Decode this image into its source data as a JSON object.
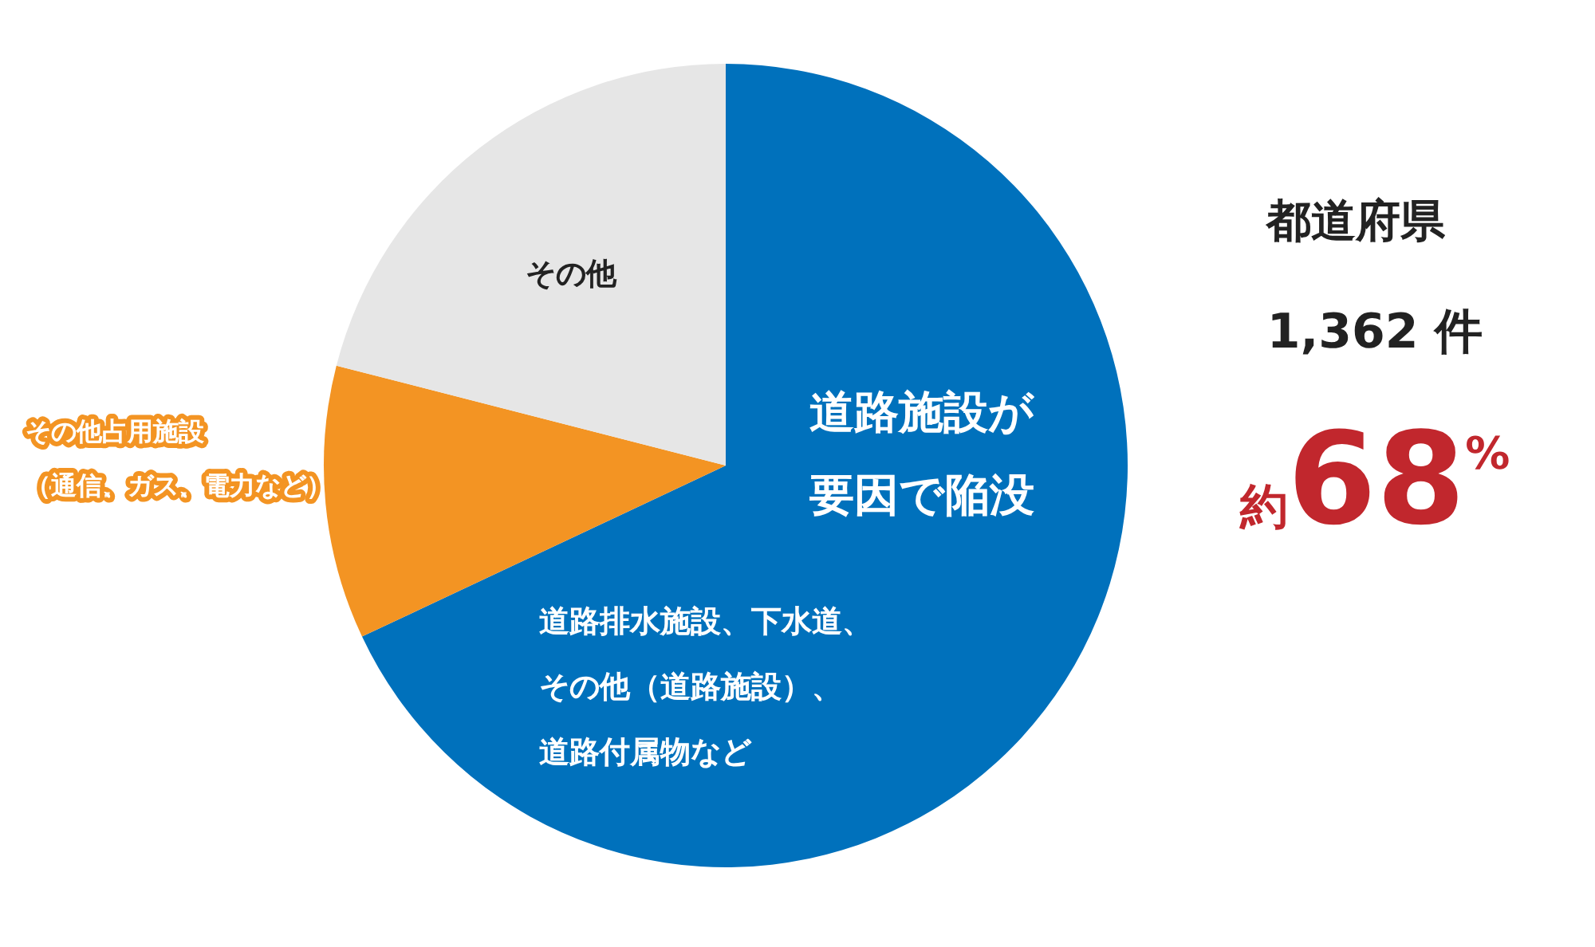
{
  "chart_data": {
    "type": "pie",
    "categories": [
      "道路施設が要因で陥没",
      "その他占用施設（通信、ガス、電力など）",
      "その他"
    ],
    "values": [
      68,
      11,
      21
    ],
    "colors": [
      "#0071bc",
      "#f39423",
      "#e6e6e6"
    ],
    "annotations": [
      "道路排水施設、下水道、その他（道路施設）、道路付属物など",
      "都道府県",
      "1,362 件",
      "約68%"
    ]
  }
}
